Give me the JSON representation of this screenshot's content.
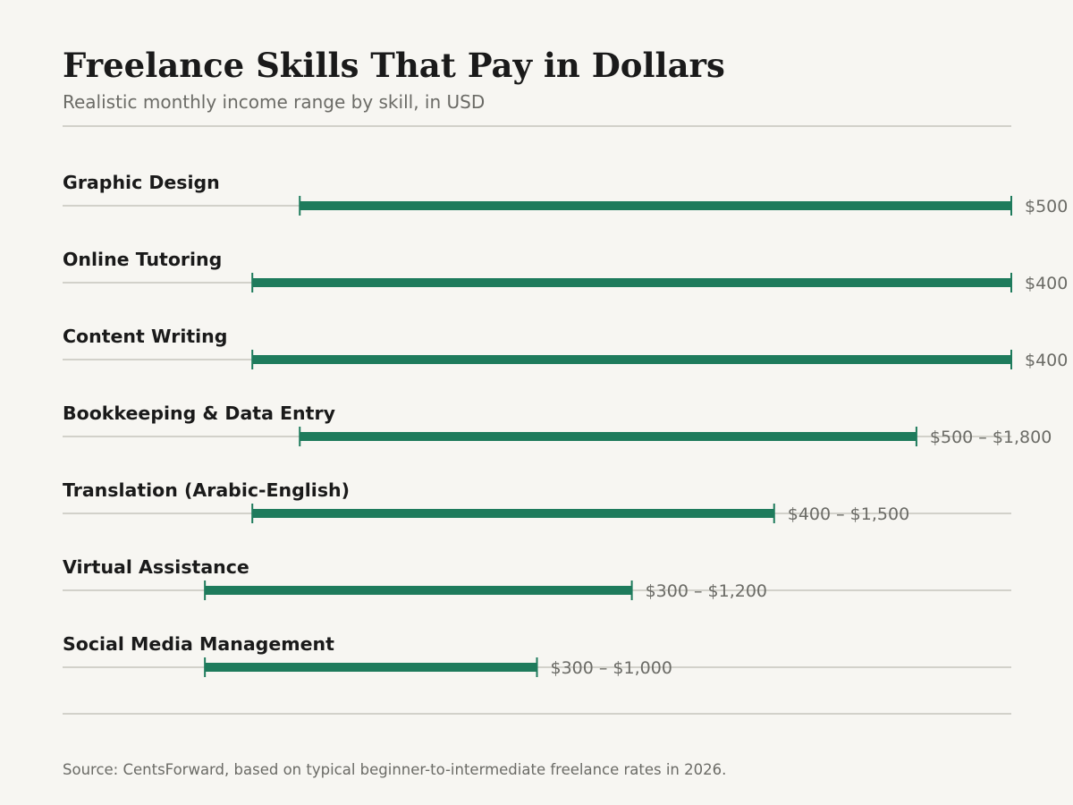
{
  "header": {
    "title": "Freelance Skills That Pay in Dollars",
    "subtitle": "Realistic monthly income range by skill, in USD"
  },
  "footer": {
    "source": "Source: CentsForward, based on typical beginner-to-intermediate freelance rates in 2026."
  },
  "colors": {
    "bar": "#1e7b5c",
    "track": "#d2d1ca",
    "background": "#f7f6f2"
  },
  "chart_data": {
    "type": "range-bar",
    "orientation": "horizontal",
    "title": "Freelance Skills That Pay in Dollars",
    "subtitle": "Realistic monthly income range by skill, in USD",
    "unit": "USD",
    "xlim": [
      0,
      2000
    ],
    "grid": false,
    "legend": "none",
    "categories": [
      "Graphic Design",
      "Online Tutoring",
      "Content Writing",
      "Bookkeeping & Data Entry",
      "Translation (Arabic-English)",
      "Virtual Assistance",
      "Social Media Management"
    ],
    "series": [
      {
        "low": [
          500,
          400,
          400,
          500,
          400,
          300,
          300
        ],
        "high": [
          2000,
          2000,
          2000,
          1800,
          1500,
          1200,
          1000
        ]
      }
    ],
    "range_labels": [
      "$500",
      "$400",
      "$400",
      "$500 – $1,800",
      "$400 – $1,500",
      "$300 – $1,200",
      "$300 – $1,000"
    ]
  }
}
